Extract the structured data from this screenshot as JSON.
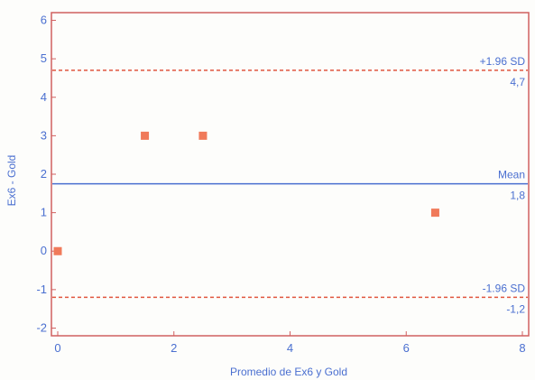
{
  "chart_data": {
    "type": "scatter",
    "title": "",
    "xlabel": "Promedio de Ex6 y Gold",
    "ylabel": "Ex6 - Gold",
    "xlim": [
      0,
      8
    ],
    "ylim": [
      -2.2,
      6.2
    ],
    "xticks": [
      0,
      2,
      4,
      6,
      8
    ],
    "yticks": [
      -2,
      -1,
      0,
      1,
      2,
      3,
      4,
      5,
      6
    ],
    "points": [
      {
        "x": 0,
        "y": 0
      },
      {
        "x": 1.5,
        "y": 3
      },
      {
        "x": 2.5,
        "y": 3
      },
      {
        "x": 6.5,
        "y": 1
      }
    ],
    "reference_lines": [
      {
        "name": "+1.96 SD",
        "value_label": "4,7",
        "y": 4.7,
        "style": "dashed",
        "color": "#e0563f"
      },
      {
        "name": "Mean",
        "value_label": "1,8",
        "y": 1.75,
        "style": "solid",
        "color": "#4a6fd0"
      },
      {
        "name": "-1.96 SD",
        "value_label": "-1,2",
        "y": -1.2,
        "style": "dashed",
        "color": "#e0563f"
      }
    ],
    "grid": false,
    "colors": {
      "frame": "#d06060",
      "axis_text": "#4a6fd0",
      "marker": "#f07a5a"
    }
  }
}
